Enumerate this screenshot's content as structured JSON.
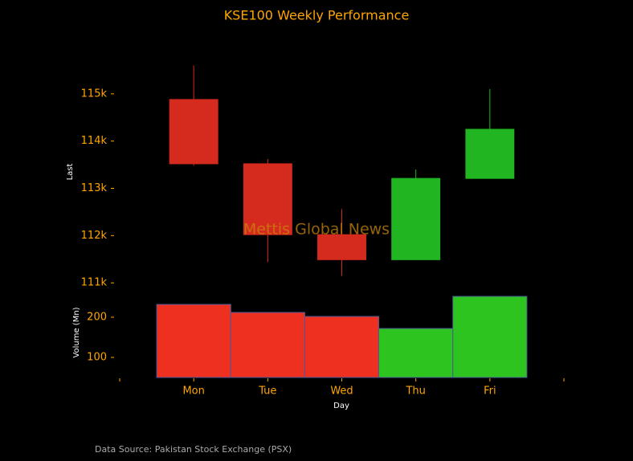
{
  "chart_data": {
    "type": "candlestick",
    "title": "KSE100 Weekly Performance",
    "watermark": "Mettis Global News",
    "source": "Data Source: Pakistan Stock Exchange (PSX)",
    "xlabel": "Day",
    "ylabel": "Last",
    "y2label": "Volume (Mn)",
    "categories": [
      "Mon",
      "Tue",
      "Wed",
      "Thu",
      "Fri"
    ],
    "open": [
      114880,
      113520,
      112020,
      111490,
      113210
    ],
    "high": [
      115600,
      113620,
      112560,
      113400,
      115100
    ],
    "low": [
      113480,
      111440,
      111150,
      111490,
      113210
    ],
    "close": [
      113520,
      112020,
      111490,
      113210,
      114250
    ],
    "volume": [
      232,
      212,
      202,
      172,
      252
    ],
    "up_color": "#22b522",
    "down_color": "#d52b1e",
    "volume_up_color": "#2ec420",
    "volume_down_color": "#ee3020",
    "xlim": [
      -1,
      5
    ],
    "ylim": [
      110850,
      116000
    ],
    "yticks": [
      {
        "value": 111000,
        "label": "111k"
      },
      {
        "value": 112000,
        "label": "112k"
      },
      {
        "value": 113000,
        "label": "113k"
      },
      {
        "value": 114000,
        "label": "114k"
      },
      {
        "value": 115000,
        "label": "115k"
      }
    ],
    "y2lim": [
      50,
      260
    ],
    "y2ticks": [
      100,
      200
    ]
  }
}
